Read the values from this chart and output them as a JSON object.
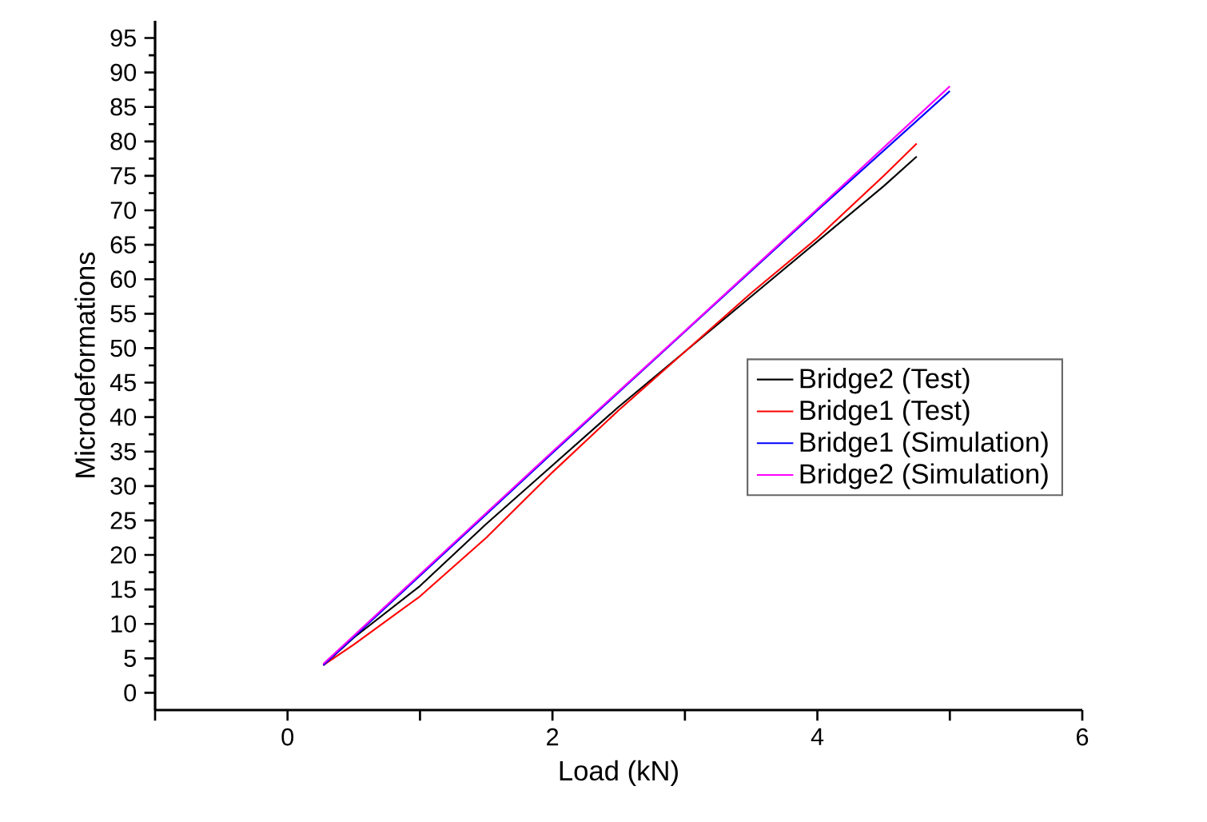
{
  "chart_data": {
    "type": "line",
    "xlabel": "Load (kN)",
    "ylabel": "Microdeformations",
    "xlim": [
      -1,
      6
    ],
    "ylim": [
      -2.5,
      97.5
    ],
    "xticks": [
      {
        "value": -1,
        "label": null
      },
      0,
      {
        "value": 1,
        "label": null
      },
      2,
      {
        "value": 3,
        "label": null
      },
      4,
      {
        "value": 5,
        "label": null
      },
      6
    ],
    "yticks": [
      0,
      5,
      10,
      15,
      20,
      25,
      30,
      35,
      40,
      45,
      50,
      55,
      60,
      65,
      70,
      75,
      80,
      85,
      90,
      95
    ],
    "legend": "right",
    "grid": false,
    "line_style": "solid",
    "marker": "none",
    "series": [
      {
        "name": "Bridge2 (Test)",
        "color": "#000000",
        "x": [
          0.27,
          0.5,
          1.0,
          1.5,
          2.0,
          2.5,
          3.0,
          3.5,
          4.0,
          4.5,
          4.75
        ],
        "values": [
          4,
          8,
          15.5,
          24.5,
          33,
          41.5,
          49.5,
          57.5,
          65.5,
          73.5,
          77.8
        ]
      },
      {
        "name": "Bridge1 (Test)",
        "color": "#ff0000",
        "x": [
          0.27,
          0.5,
          1.0,
          1.5,
          2.0,
          2.5,
          3.0,
          3.5,
          4.0,
          4.5,
          4.75
        ],
        "values": [
          4,
          7,
          14,
          22.5,
          32,
          41,
          49.5,
          58,
          66,
          75,
          79.7
        ]
      },
      {
        "name": "Bridge1 (Simulation)",
        "color": "#0000ff",
        "x": [
          0.27,
          1.0,
          2.0,
          3.0,
          4.0,
          5.0
        ],
        "values": [
          4,
          17,
          34.8,
          52.4,
          70,
          87.3
        ]
      },
      {
        "name": "Bridge2 (Simulation)",
        "color": "#ff00ff",
        "x": [
          0.27,
          1.0,
          2.0,
          3.0,
          4.0,
          5.0
        ],
        "values": [
          4.2,
          17.2,
          35,
          52.5,
          70.2,
          88
        ]
      }
    ]
  }
}
